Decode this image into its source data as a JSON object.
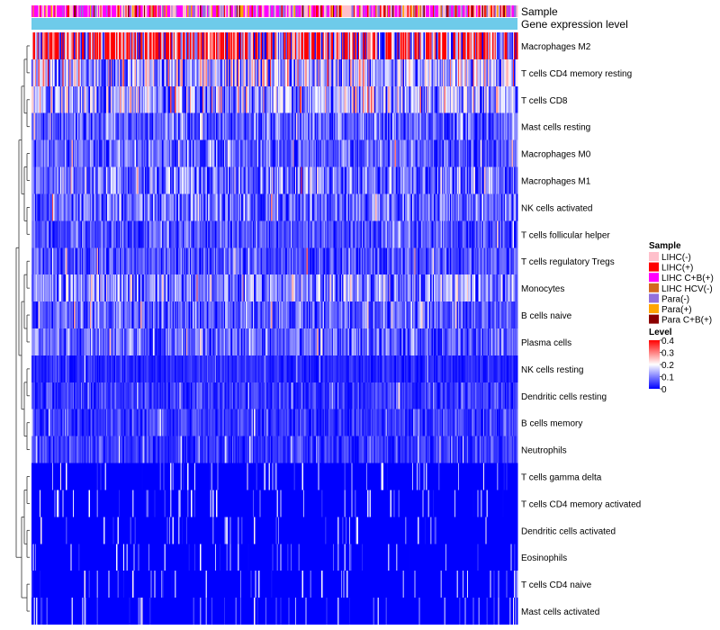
{
  "chart_data": {
    "type": "heatmap",
    "title": "",
    "annotation_tracks": [
      "Sample",
      "Gene expression level"
    ],
    "rows": [
      "Macrophages M2",
      "T cells CD4 memory resting",
      "T cells CD8",
      "Mast cells resting",
      "Macrophages M0",
      "Macrophages M1",
      "NK cells activated",
      "T cells follicular helper",
      "T cells regulatory  Tregs",
      "Monocytes",
      "B cells naive",
      "Plasma cells",
      "NK cells resting",
      "Dendritic cells resting",
      "B cells memory",
      "Neutrophils",
      "T cells gamma delta",
      "T cells CD4 memory activated",
      "Dendritic cells activated",
      "Eosinophils",
      "T cells CD4 naive",
      "Mast cells activated"
    ],
    "row_mean_level": [
      0.3,
      0.14,
      0.13,
      0.07,
      0.07,
      0.09,
      0.08,
      0.06,
      0.06,
      0.1,
      0.07,
      0.07,
      0.03,
      0.04,
      0.04,
      0.04,
      0.02,
      0.01,
      0.01,
      0.01,
      0.01,
      0.01
    ],
    "n_samples": 424,
    "gene_expression_color": "#6ECBEA",
    "sample_legend": {
      "title": "Sample",
      "entries": [
        {
          "label": "LIHC(-)",
          "color": "#FFC0CB"
        },
        {
          "label": "LIHC(+)",
          "color": "#FF0000"
        },
        {
          "label": "LIHC C+B(+)",
          "color": "#FF00FF"
        },
        {
          "label": "LIHC HCV(-)",
          "color": "#D2691E"
        },
        {
          "label": "Para(-)",
          "color": "#9370DB"
        },
        {
          "label": "Para(+)",
          "color": "#FFA500"
        },
        {
          "label": "Para C+B(+)",
          "color": "#8B0000"
        }
      ]
    },
    "level_legend": {
      "title": "Level",
      "ticks": [
        "0.4",
        "0.3",
        "0.2",
        "0.1",
        "0"
      ],
      "range": [
        0,
        0.4
      ],
      "colors": [
        "#0000FF",
        "#FFFFFF",
        "#FF0000"
      ]
    }
  }
}
